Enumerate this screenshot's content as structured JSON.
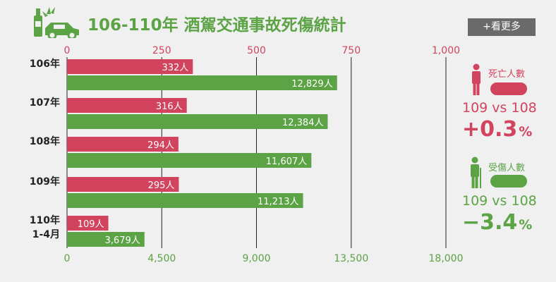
{
  "header": {
    "title": "106-110年 酒駕交通事故死傷統計",
    "more_button_label": "+看更多"
  },
  "colors": {
    "deaths": "#d2435e",
    "injuries": "#5ba345",
    "axis_text_deaths": "#d2435e",
    "axis_text_injuries": "#5ba345",
    "background": "#f0f0f0"
  },
  "chart_data": {
    "type": "bar",
    "orientation": "horizontal",
    "categories": [
      "106年",
      "107年",
      "108年",
      "109年",
      "110年\n1-4月"
    ],
    "series": [
      {
        "name": "死亡人數",
        "axis": "top",
        "values": [
          332,
          316,
          294,
          295,
          109
        ],
        "labels": [
          "332人",
          "316人",
          "294人",
          "295人",
          "109人"
        ]
      },
      {
        "name": "受傷人數",
        "axis": "bottom",
        "values": [
          12829,
          12384,
          11607,
          11213,
          3679
        ],
        "labels": [
          "12,829人",
          "12,384人",
          "11,607人",
          "11,213人",
          "3,679人"
        ]
      }
    ],
    "top_axis": {
      "range": [
        0,
        1000
      ],
      "ticks": [
        "0",
        "250",
        "500",
        "750",
        "1,000"
      ]
    },
    "bottom_axis": {
      "range": [
        0,
        18000
      ],
      "ticks": [
        "0",
        "4,500",
        "9,000",
        "13,500",
        "18,000"
      ]
    },
    "grid": true
  },
  "stats": {
    "deaths": {
      "label": "死亡人數",
      "comparison": "109 vs 108",
      "change": "+0.3",
      "unit": "%"
    },
    "injuries": {
      "label": "受傷人數",
      "comparison": "109 vs 108",
      "change": "−3.4",
      "unit": "%"
    }
  }
}
